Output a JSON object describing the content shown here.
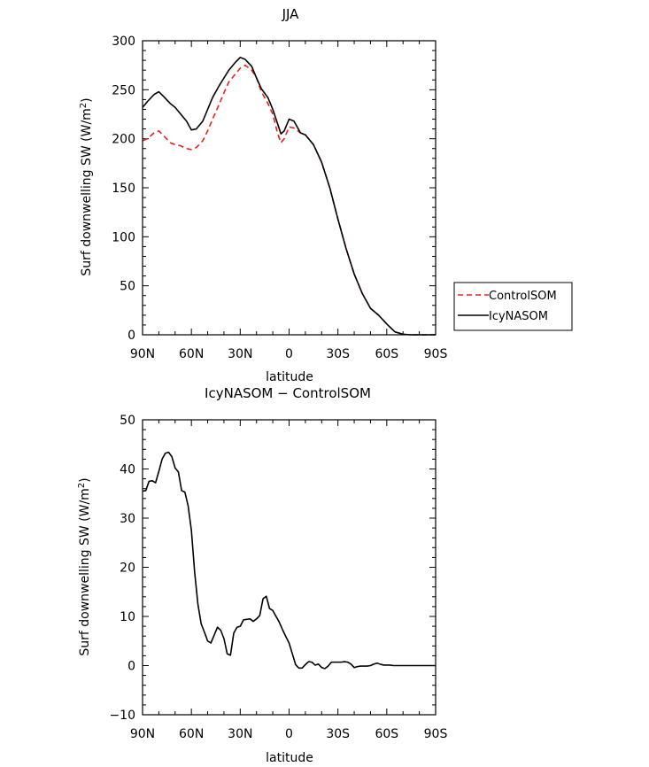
{
  "chart_data": [
    {
      "type": "line",
      "title": "JJA",
      "xlabel": "latitude",
      "ylabel": "Surf downwelling SW (W/m²)",
      "ylabel_text": "Surf downwelling SW (W/m",
      "ylabel_sup": "2",
      "ylabel_close": ")",
      "x_ticks": [
        "90N",
        "60N",
        "30N",
        "0",
        "30S",
        "60S",
        "90S"
      ],
      "x_tick_values": [
        90,
        60,
        30,
        0,
        -30,
        -60,
        -90
      ],
      "y_ticks": [
        "0",
        "50",
        "100",
        "150",
        "200",
        "250",
        "300"
      ],
      "xlim": [
        90,
        -90
      ],
      "ylim": [
        0,
        300
      ],
      "legend": "outside-right",
      "series": [
        {
          "name": "ControlSOM",
          "color": "#e8201a",
          "dash": "dashed",
          "x": [
            90,
            87,
            83,
            80,
            77,
            73,
            70,
            67,
            63,
            60,
            57,
            53,
            50,
            47,
            43,
            40,
            37,
            33,
            30,
            27,
            23,
            20,
            17,
            13,
            10,
            7,
            5,
            3,
            0,
            -3,
            -7,
            -10,
            -15,
            -20,
            -25,
            -30,
            -35,
            -40,
            -45,
            -50,
            -55,
            -60,
            -65,
            -70,
            -75,
            -80,
            -85,
            -90
          ],
          "y": [
            198,
            200,
            206,
            208,
            203,
            196,
            194,
            193,
            190,
            189,
            191,
            198,
            208,
            220,
            235,
            247,
            258,
            266,
            272,
            275,
            270,
            262,
            248,
            236,
            225,
            205,
            196,
            200,
            212,
            211,
            206,
            204,
            194,
            176,
            150,
            118,
            88,
            62,
            42,
            27,
            20,
            11,
            3,
            0.5,
            0,
            0,
            0,
            0
          ]
        },
        {
          "name": "IcyNASOM",
          "color": "#000000",
          "dash": "solid",
          "x": [
            90,
            87,
            83,
            80,
            77,
            73,
            70,
            67,
            63,
            60,
            57,
            53,
            50,
            47,
            43,
            40,
            37,
            33,
            30,
            27,
            23,
            20,
            17,
            13,
            10,
            7,
            5,
            3,
            0,
            -3,
            -7,
            -10,
            -15,
            -20,
            -25,
            -30,
            -35,
            -40,
            -45,
            -50,
            -55,
            -60,
            -65,
            -70,
            -75,
            -80,
            -85,
            -90
          ],
          "y": [
            232,
            238,
            245,
            248,
            243,
            236,
            232,
            226,
            218,
            209,
            210,
            218,
            230,
            242,
            254,
            262,
            270,
            278,
            283,
            281,
            274,
            262,
            251,
            242,
            230,
            215,
            205,
            208,
            220,
            218,
            206,
            204,
            194,
            176,
            150,
            118,
            88,
            62,
            42,
            27,
            20,
            11,
            3,
            0.5,
            0,
            0,
            0,
            0
          ]
        }
      ]
    },
    {
      "type": "line",
      "title": "IcyNASOM − ControlSOM",
      "xlabel": "latitude",
      "ylabel": "Surf downwelling SW (W/m²)",
      "ylabel_text": "Surf downwelling SW (W/m",
      "ylabel_sup": "2",
      "ylabel_close": ")",
      "x_ticks": [
        "90N",
        "60N",
        "30N",
        "0",
        "30S",
        "60S",
        "90S"
      ],
      "x_tick_values": [
        90,
        60,
        30,
        0,
        -30,
        -60,
        -90
      ],
      "y_ticks": [
        "−10",
        "0",
        "10",
        "20",
        "30",
        "40",
        "50"
      ],
      "y_tick_values": [
        -10,
        0,
        10,
        20,
        30,
        40,
        50
      ],
      "xlim": [
        90,
        -90
      ],
      "ylim": [
        -10,
        50
      ],
      "series": [
        {
          "color": "#000000",
          "dash": "solid",
          "x": [
            90,
            88,
            86,
            84,
            82,
            80,
            78,
            76,
            74,
            72,
            70,
            68,
            66,
            64,
            62,
            60,
            58,
            56,
            54,
            52,
            50,
            48,
            46,
            44,
            42,
            40,
            38,
            36,
            34,
            32,
            30,
            28,
            26,
            24,
            22,
            20,
            18,
            16,
            14,
            12,
            10,
            8,
            6,
            4,
            2,
            0,
            -2,
            -4,
            -6,
            -8,
            -10,
            -12,
            -14,
            -16,
            -18,
            -20,
            -22,
            -24,
            -26,
            -28,
            -30,
            -32,
            -34,
            -36,
            -38,
            -40,
            -42,
            -44,
            -46,
            -48,
            -50,
            -52,
            -54,
            -56,
            -58,
            -60,
            -62,
            -64,
            -66,
            -70,
            -75,
            -80,
            -85,
            -90
          ],
          "y": [
            35.5,
            35.6,
            37.5,
            37.6,
            37.2,
            39.5,
            42.0,
            43.2,
            43.4,
            42.5,
            40.2,
            39.4,
            35.6,
            35.3,
            32.5,
            27.5,
            19.0,
            12.5,
            8.5,
            6.8,
            5.0,
            4.6,
            6.2,
            7.8,
            7.2,
            5.5,
            2.4,
            2.1,
            6.6,
            7.8,
            8.0,
            9.3,
            9.4,
            9.5,
            9.0,
            9.5,
            10.2,
            13.6,
            14.1,
            11.6,
            11.2,
            10.0,
            8.8,
            7.3,
            5.9,
            4.6,
            2.4,
            0.2,
            -0.5,
            -0.5,
            0.2,
            0.8,
            0.7,
            0.1,
            0.3,
            -0.4,
            -0.6,
            -0.1,
            0.7,
            0.7,
            0.7,
            0.7,
            0.8,
            0.7,
            0.3,
            -0.4,
            -0.2,
            -0.1,
            -0.1,
            -0.1,
            0.0,
            0.3,
            0.5,
            0.3,
            0.1,
            0.1,
            0.1,
            0.0,
            0.0,
            0.0,
            0.0,
            0.0,
            0.0,
            0.0
          ]
        }
      ]
    }
  ]
}
